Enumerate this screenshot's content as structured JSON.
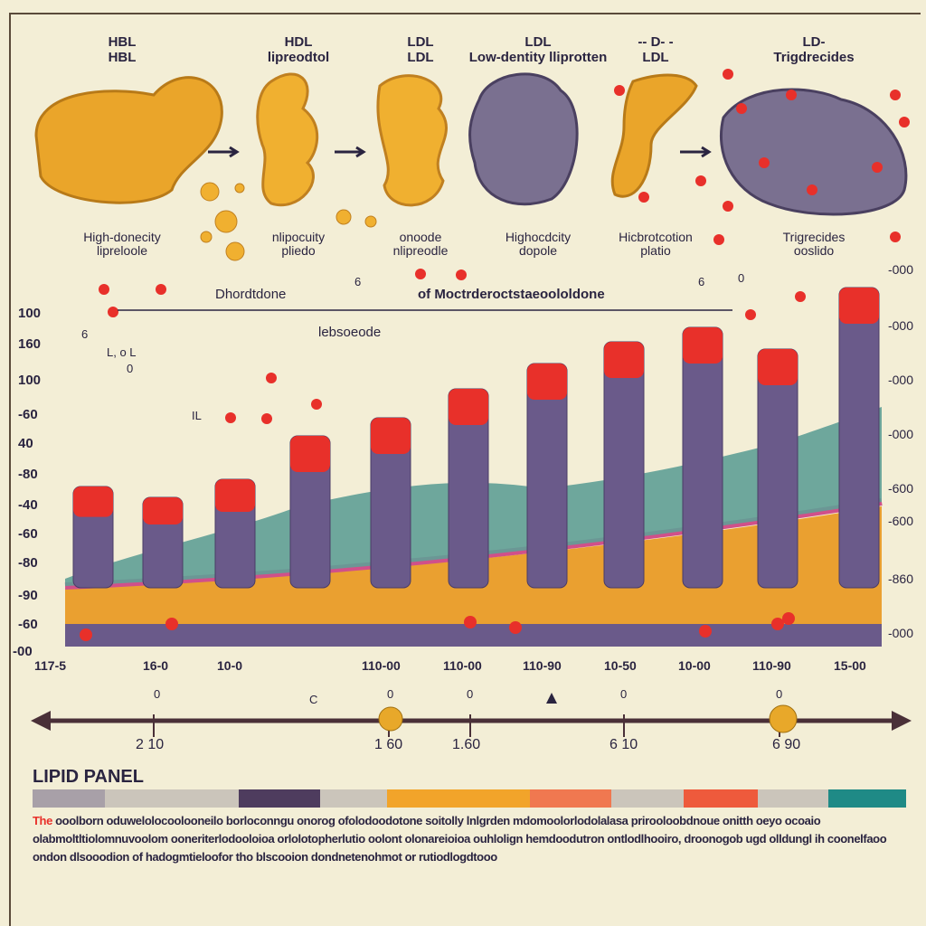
{
  "molecules": [
    {
      "title": "HBL\nHBL",
      "caption": "High-donecity\nlipreloole"
    },
    {
      "title": "HDL\nlipreodtol",
      "caption": "nlipocuity\npliedo"
    },
    {
      "title": "LDL\nLDL",
      "caption": "onoode\nnlipreodle"
    },
    {
      "title": "LDL\nLow-dentity lliprotten",
      "caption": "Highocdcity\ndopole"
    },
    {
      "title": "-- D- -\nLDL",
      "caption": "Hicbrotcotion\nplatio"
    },
    {
      "title": "LD-\nTrigdrecides",
      "caption": "Trigrecides\nooslido"
    }
  ],
  "chart": {
    "annotations": [
      "Dhordtdone",
      "of Moctrderoctstaeoololdone",
      "lebsoeode",
      "L, o L",
      "0",
      "IL",
      "6",
      "6",
      "0",
      "6"
    ],
    "y_left": [
      "100",
      "160",
      "100",
      "-60",
      "40",
      "-80",
      "-40",
      "-60",
      "-80",
      "-90",
      "-60",
      "-00"
    ],
    "y_right": [
      "-000",
      "-000",
      "-000",
      "-000",
      "-600",
      "-600",
      "-860",
      "-000"
    ],
    "x_ticks": [
      "117-5",
      "16-0",
      "10-0",
      "110-00",
      "110-00",
      "110-90",
      "10-50",
      "10-00",
      "110-90",
      "15-00"
    ],
    "marker_labels": [
      "0",
      "C",
      "0",
      "0",
      "0",
      "0"
    ],
    "column_heights": [
      0.28,
      0.25,
      0.3,
      0.42,
      0.47,
      0.55,
      0.62,
      0.68,
      0.72,
      0.66,
      0.83
    ]
  },
  "timeline": {
    "labels": [
      "2 10",
      "1 60",
      "1.60",
      "6 10",
      "6 90"
    ]
  },
  "panel": {
    "title": "LIPID PANEL",
    "swatches": [
      "#a8a0a8",
      "#cbc5bb",
      "#4e3c5e",
      "#cbc5bb",
      "#f2a42a",
      "#f07850",
      "#cbc5bb",
      "#ee5a3c",
      "#cbc5bb",
      "#1f8a86"
    ],
    "para_lead": "The",
    "para": "ooolborn oduwelolocoolooneilo borloconngu onorog ofolodoodotone soitolly lnlgrden mdomoolorlodolalasa prirooloobdnoue onitth oeyo ocoaio olabmoltltiolomnuvoolom ooneriterlodooloioa orlolotopherlutio oolont olonareioioa ouhlolign hemdoodutron ontlodlhooiro, droonogob ugd olldungl ih coonelfaoo ondon dlsooodion of hadogmtieloofor tho blscooion dondnetenohmot or rutiodlogdtooo"
  },
  "colors": {
    "purple": "#6a5a8a",
    "red": "#e8302a",
    "orange": "#eaa030",
    "teal": "#5f9e96",
    "pink": "#d0508a",
    "bg": "#f3eed6"
  }
}
